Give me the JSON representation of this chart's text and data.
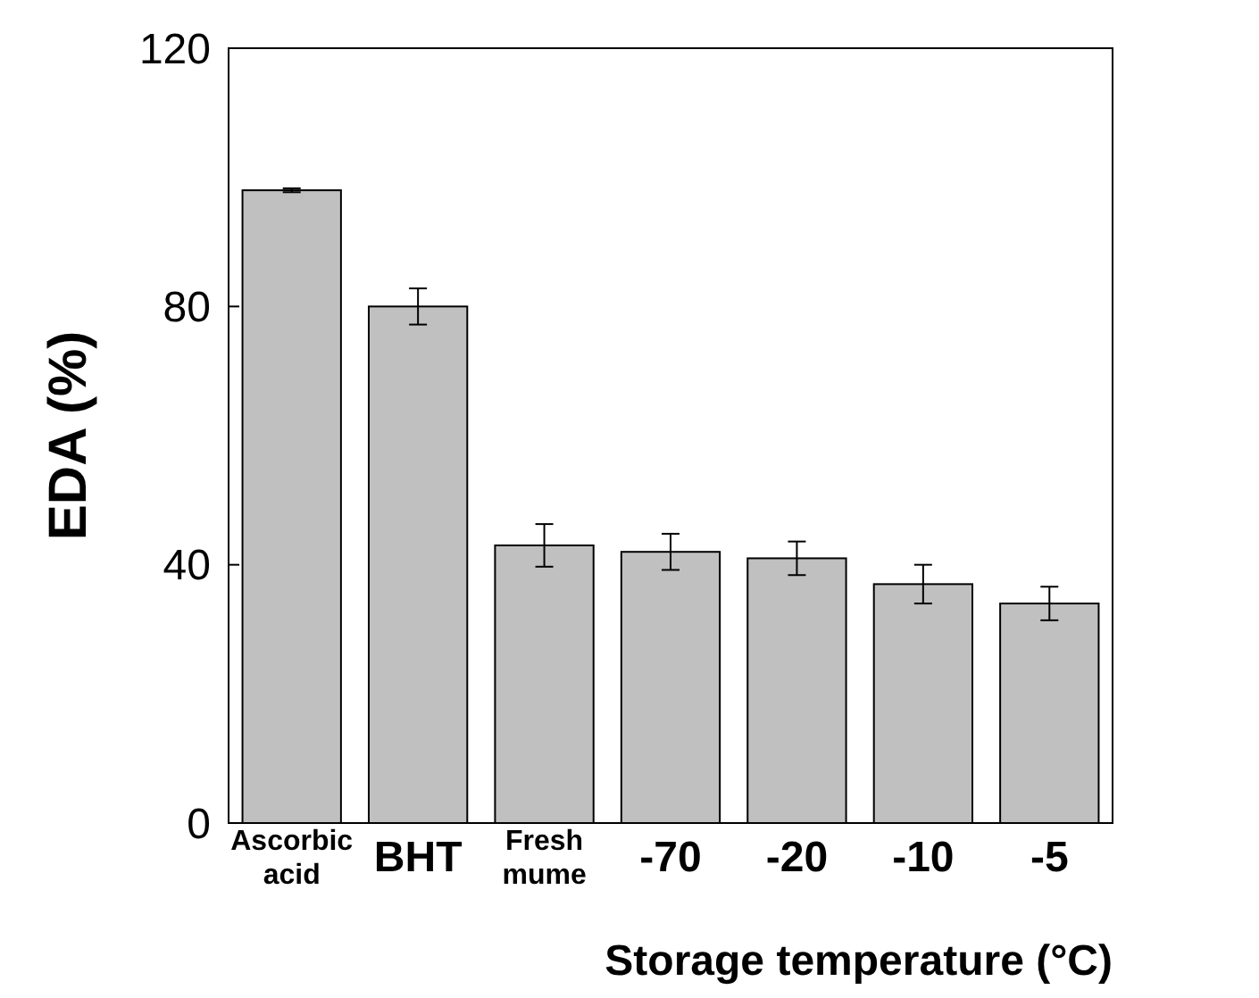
{
  "chart_data": {
    "type": "bar",
    "xlabel": "Storage temperature (°C)",
    "ylabel": "EDA (%)",
    "categories": [
      "Ascorbic acid",
      "BHT",
      "Fresh mume",
      "-70",
      "-20",
      "-10",
      "-5"
    ],
    "values": [
      98,
      80,
      43,
      42,
      41,
      37,
      34
    ],
    "errors": [
      0.3,
      2.8,
      3.3,
      2.8,
      2.6,
      3,
      2.6
    ],
    "color": "#c0c0c0",
    "ylim": [
      0,
      120
    ],
    "yticks": [
      0,
      40,
      80,
      120
    ],
    "grid": false
  }
}
